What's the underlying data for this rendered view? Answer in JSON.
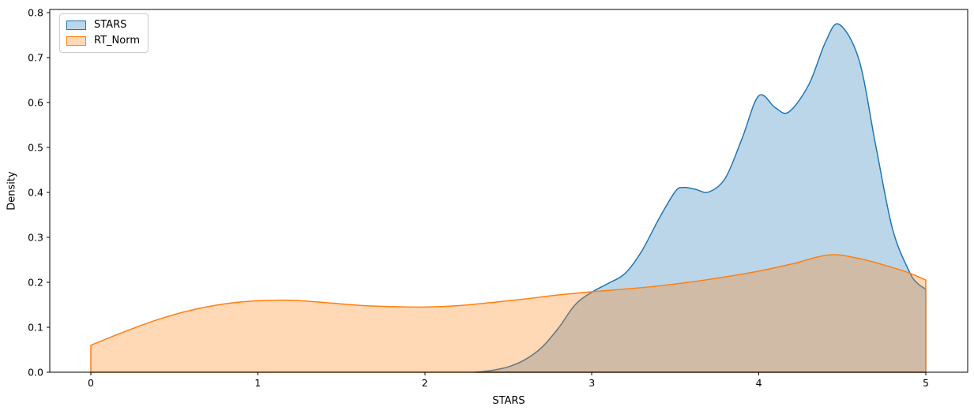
{
  "chart_data": {
    "type": "area",
    "subtype": "kde-density",
    "title": "",
    "xlabel": "STARS",
    "ylabel": "Density",
    "xlim": [
      -0.246,
      5.251
    ],
    "ylim": [
      0,
      0.807
    ],
    "xticks": [
      0,
      1,
      2,
      3,
      4,
      5
    ],
    "yticks": [
      "0.0",
      "0.1",
      "0.2",
      "0.3",
      "0.4",
      "0.5",
      "0.6",
      "0.7",
      "0.8"
    ],
    "grid": false,
    "fill_opacity": 0.3,
    "line_width": 1.5,
    "legend": {
      "position": "upper-left",
      "entries": [
        "STARS",
        "RT_Norm"
      ]
    },
    "series": [
      {
        "name": "STARS",
        "color": "#1f77b4",
        "x": [
          2.3,
          2.4,
          2.5,
          2.6,
          2.7,
          2.8,
          2.9,
          3.0,
          3.1,
          3.2,
          3.3,
          3.4,
          3.5,
          3.55,
          3.62,
          3.7,
          3.8,
          3.9,
          4.0,
          4.1,
          4.18,
          4.3,
          4.4,
          4.48,
          4.6,
          4.7,
          4.8,
          4.9,
          4.95,
          5.0
        ],
        "y": [
          0.0,
          0.004,
          0.012,
          0.028,
          0.055,
          0.098,
          0.15,
          0.178,
          0.198,
          0.22,
          0.27,
          0.34,
          0.402,
          0.411,
          0.407,
          0.401,
          0.432,
          0.52,
          0.615,
          0.588,
          0.579,
          0.64,
          0.735,
          0.774,
          0.695,
          0.505,
          0.32,
          0.225,
          0.198,
          0.185
        ],
        "clip_right": true,
        "clip_left": false
      },
      {
        "name": "RT_Norm",
        "color": "#ff7f0e",
        "x": [
          0.0,
          0.2,
          0.4,
          0.6,
          0.8,
          1.0,
          1.2,
          1.4,
          1.6,
          1.8,
          2.0,
          2.2,
          2.4,
          2.6,
          2.8,
          3.0,
          3.2,
          3.4,
          3.6,
          3.8,
          4.0,
          4.2,
          4.42,
          4.6,
          4.8,
          4.9,
          5.0
        ],
        "y": [
          0.06,
          0.09,
          0.117,
          0.138,
          0.152,
          0.159,
          0.16,
          0.155,
          0.149,
          0.146,
          0.145,
          0.148,
          0.155,
          0.163,
          0.172,
          0.179,
          0.185,
          0.192,
          0.201,
          0.212,
          0.225,
          0.241,
          0.261,
          0.253,
          0.233,
          0.221,
          0.205
        ],
        "clip_right": true,
        "clip_left": true
      }
    ]
  }
}
